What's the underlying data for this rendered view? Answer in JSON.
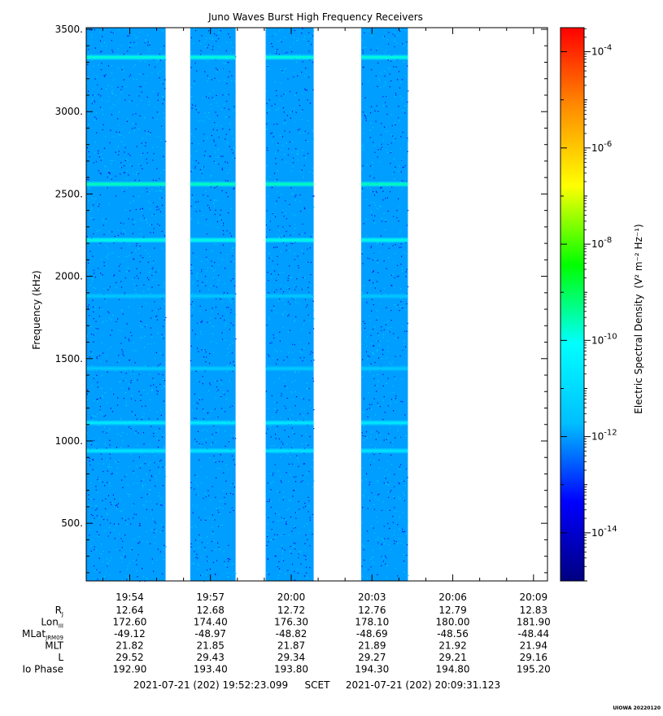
{
  "chart_data": {
    "type": "heatmap",
    "title": "Juno Waves Burst High Frequency Receivers",
    "ylabel": "Frequency (kHz)",
    "ylim": [
      150,
      3510
    ],
    "y_ticks": [
      {
        "value": 500,
        "label": "500."
      },
      {
        "value": 1000,
        "label": "1000."
      },
      {
        "value": 1500,
        "label": "1500."
      },
      {
        "value": 2000,
        "label": "2000."
      },
      {
        "value": 2500,
        "label": "2500."
      },
      {
        "value": 3000,
        "label": "3000."
      },
      {
        "value": 3500,
        "label": "3500."
      }
    ],
    "x_start": "2021-07-21 (202) 19:52:23.099",
    "x_end": "2021-07-21 (202) 20:09:31.123",
    "x_timescale": "SCET",
    "x_ticks": [
      "19:54",
      "19:57",
      "20:00",
      "20:03",
      "20:06",
      "20:09"
    ],
    "x_tick_times": [
      "19:54:00",
      "19:57:00",
      "20:00:00",
      "20:03:00",
      "20:06:00",
      "20:09:00"
    ],
    "data_segments": [
      {
        "start": "19:52:23",
        "end": "19:55:20"
      },
      {
        "start": "19:56:15",
        "end": "19:57:56"
      },
      {
        "start": "19:59:03",
        "end": "20:00:50"
      },
      {
        "start": "20:02:36",
        "end": "20:04:20"
      }
    ],
    "emission_lines_khz": [
      3330,
      2560,
      2220,
      1110,
      940,
      1440,
      1880
    ],
    "background_level_log10": -12,
    "colorbar": {
      "label": "Electric Spectral Density",
      "unit_label": "(V² m⁻² Hz⁻¹)",
      "scale": "log",
      "range_log10": [
        -15,
        -3.5
      ],
      "ticks": [
        {
          "log10": -4,
          "mantissa": "10",
          "exponent": "-4"
        },
        {
          "log10": -6,
          "mantissa": "10",
          "exponent": "-6"
        },
        {
          "log10": -8,
          "mantissa": "10",
          "exponent": "-8"
        },
        {
          "log10": -10,
          "mantissa": "10",
          "exponent": "-10"
        },
        {
          "log10": -12,
          "mantissa": "10",
          "exponent": "-12"
        },
        {
          "log10": -14,
          "mantissa": "10",
          "exponent": "-14"
        }
      ],
      "colors": [
        "#000080",
        "#0000ff",
        "#00bfff",
        "#00ffff",
        "#00ff00",
        "#ffff00",
        "#ff8c00",
        "#ff0000"
      ]
    },
    "ephemeris": {
      "rows": [
        {
          "label": "R",
          "sub": "J",
          "values": [
            "12.64",
            "12.68",
            "12.72",
            "12.76",
            "12.79",
            "12.83"
          ]
        },
        {
          "label": "Lon",
          "sub": "III",
          "values": [
            "172.60",
            "174.40",
            "176.30",
            "178.10",
            "180.00",
            "181.90"
          ]
        },
        {
          "label": "MLat",
          "sub": "JRM09",
          "values": [
            "-49.12",
            "-48.97",
            "-48.82",
            "-48.69",
            "-48.56",
            "-48.44"
          ]
        },
        {
          "label": "MLT",
          "sub": "",
          "values": [
            "21.82",
            "21.85",
            "21.87",
            "21.89",
            "21.92",
            "21.94"
          ]
        },
        {
          "label": "L",
          "sub": "",
          "values": [
            "29.52",
            "29.43",
            "29.34",
            "29.27",
            "29.21",
            "29.16"
          ]
        },
        {
          "label": "Io Phase",
          "sub": "",
          "values": [
            "192.90",
            "193.40",
            "193.80",
            "194.30",
            "194.80",
            "195.20"
          ]
        }
      ]
    }
  },
  "footer": {
    "start_text": "2021-07-21 (202) 19:52:23.099",
    "timescale": "SCET",
    "end_text": "2021-07-21 (202) 20:09:31.123",
    "stamp": "UIOWA 20220120"
  }
}
